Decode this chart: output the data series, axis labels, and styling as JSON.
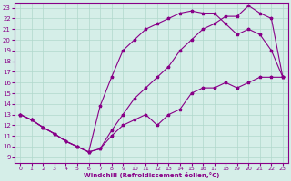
{
  "xlabel": "Windchill (Refroidissement éolien,°C)",
  "xlim": [
    -0.5,
    23.5
  ],
  "ylim": [
    8.5,
    23.5
  ],
  "xticks": [
    0,
    1,
    2,
    3,
    4,
    5,
    6,
    7,
    8,
    9,
    10,
    11,
    12,
    13,
    14,
    15,
    16,
    17,
    18,
    19,
    20,
    21,
    22,
    23
  ],
  "yticks": [
    9,
    10,
    11,
    12,
    13,
    14,
    15,
    16,
    17,
    18,
    19,
    20,
    21,
    22,
    23
  ],
  "bg_color": "#d5eee8",
  "grid_color": "#b0d8cc",
  "line_color": "#880088",
  "line1_x": [
    0,
    1,
    2,
    3,
    4,
    5,
    6,
    7,
    8,
    9,
    10,
    11,
    12,
    13,
    14,
    15,
    16,
    17,
    18,
    19,
    20,
    21,
    22,
    23
  ],
  "line1_y": [
    13.0,
    12.5,
    11.8,
    11.2,
    10.5,
    10.0,
    9.5,
    9.8,
    11.5,
    13.0,
    14.5,
    15.5,
    16.5,
    17.5,
    19.0,
    20.0,
    21.0,
    21.5,
    22.2,
    22.2,
    23.2,
    22.5,
    22.0,
    16.5
  ],
  "line2_x": [
    0,
    1,
    2,
    3,
    4,
    5,
    6,
    7,
    8,
    9,
    10,
    11,
    12,
    13,
    14,
    15,
    16,
    17,
    18,
    19,
    20,
    21,
    22,
    23
  ],
  "line2_y": [
    13.0,
    12.5,
    11.8,
    11.2,
    10.5,
    10.0,
    9.5,
    13.8,
    16.5,
    19.0,
    20.0,
    21.0,
    21.5,
    22.0,
    22.5,
    22.7,
    22.5,
    22.5,
    21.5,
    20.5,
    21.0,
    20.5,
    19.0,
    16.5
  ],
  "line3_x": [
    0,
    1,
    2,
    3,
    4,
    5,
    6,
    7,
    8,
    9,
    10,
    11,
    12,
    13,
    14,
    15,
    16,
    17,
    18,
    19,
    20,
    21,
    22,
    23
  ],
  "line3_y": [
    13.0,
    12.5,
    11.8,
    11.2,
    10.5,
    10.0,
    9.5,
    9.8,
    11.0,
    12.0,
    12.5,
    13.0,
    12.0,
    13.0,
    13.5,
    15.0,
    15.5,
    15.5,
    16.0,
    15.5,
    16.0,
    16.5,
    16.5,
    16.5
  ]
}
